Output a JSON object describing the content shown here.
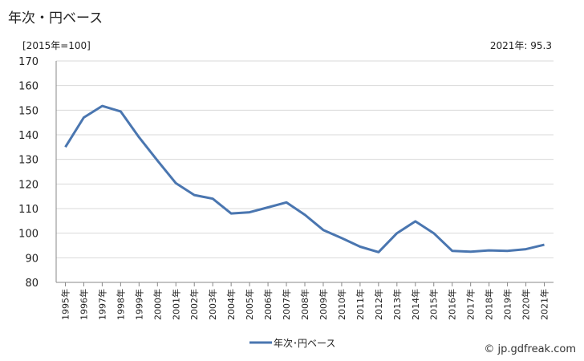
{
  "title": "年次・円ベース",
  "unit_label": "[2015年=100]",
  "latest_label": "2021年: 95.3",
  "source": "© jp.gdfreak.com",
  "chart_data": {
    "type": "line",
    "title": "",
    "xlabel": "",
    "ylabel": "",
    "ylim": [
      80,
      170
    ],
    "yticks": [
      80,
      90,
      100,
      110,
      120,
      130,
      140,
      150,
      160,
      170
    ],
    "grid": true,
    "legend_position": "bottom",
    "categories": [
      "1995年",
      "1996年",
      "1997年",
      "1998年",
      "1999年",
      "2000年",
      "2001年",
      "2002年",
      "2003年",
      "2004年",
      "2005年",
      "2006年",
      "2007年",
      "2008年",
      "2009年",
      "2010年",
      "2011年",
      "2012年",
      "2013年",
      "2014年",
      "2015年",
      "2016年",
      "2017年",
      "2018年",
      "2019年",
      "2020年",
      "2021年"
    ],
    "series": [
      {
        "name": "年次･円ベース",
        "color": "#4a76b0",
        "values": [
          135.0,
          147.0,
          151.7,
          149.5,
          139.0,
          129.5,
          120.3,
          115.5,
          114.0,
          108.0,
          108.5,
          110.5,
          112.5,
          107.5,
          101.3,
          98.0,
          94.5,
          92.3,
          100.0,
          104.8,
          100.0,
          92.8,
          92.5,
          93.0,
          92.8,
          93.5,
          95.3
        ]
      }
    ]
  }
}
